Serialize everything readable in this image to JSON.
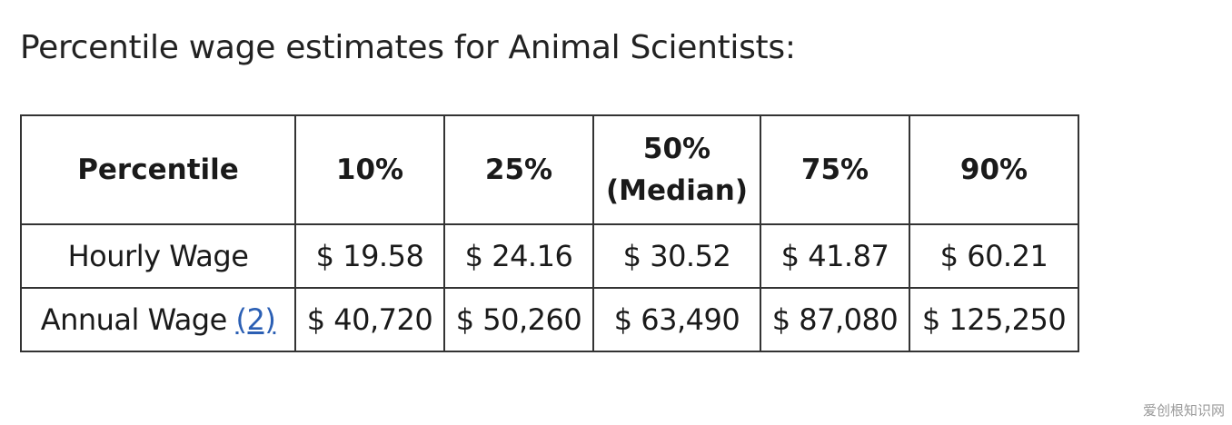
{
  "heading": "Percentile wage estimates for Animal Scientists:",
  "table": {
    "header": {
      "row_label": "Percentile",
      "p10": "10%",
      "p25": "25%",
      "p50_line1": "50%",
      "p50_line2": "(Median)",
      "p75": "75%",
      "p90": "90%"
    },
    "hourly": {
      "label": "Hourly Wage",
      "p10": "$ 19.58",
      "p25": "$ 24.16",
      "p50": "$ 30.52",
      "p75": "$ 41.87",
      "p90": "$ 60.21"
    },
    "annual": {
      "label": "Annual Wage",
      "footnote_link": "(2)",
      "p10": "$ 40,720",
      "p25": "$ 50,260",
      "p50": "$ 63,490",
      "p75": "$ 87,080",
      "p90": "$ 125,250"
    }
  },
  "watermark": "爱创根知识网",
  "colors": {
    "text": "#1a1a1a",
    "border": "#333333",
    "link": "#2b5fb4",
    "background": "#ffffff"
  }
}
